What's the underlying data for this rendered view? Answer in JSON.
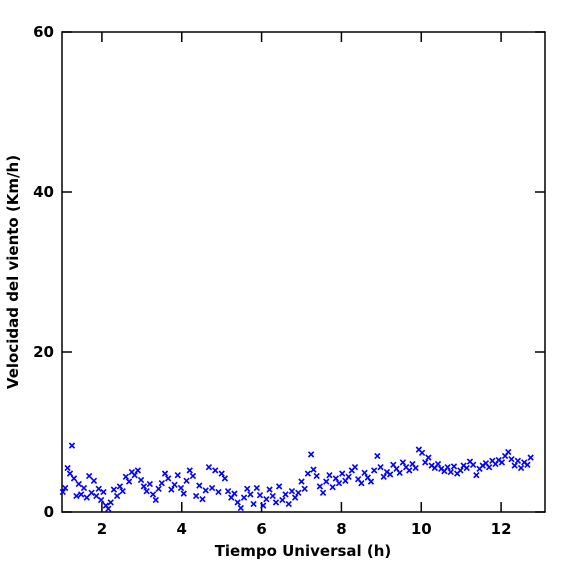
{
  "chart_data": {
    "type": "scatter",
    "color": "#0000ff",
    "x_label": "Tiempo Universal (h)",
    "y_label": "Velocidad del viento (Km/h)",
    "xlim": [
      1,
      13.1
    ],
    "ylim": [
      0,
      60
    ],
    "xticks": [
      2,
      4,
      6,
      8,
      10,
      12
    ],
    "yticks": [
      0,
      20,
      40,
      60
    ],
    "x": [
      1.02,
      1.08,
      1.14,
      1.2,
      1.25,
      1.3,
      1.36,
      1.42,
      1.48,
      1.55,
      1.62,
      1.68,
      1.74,
      1.8,
      1.86,
      1.92,
      1.98,
      2.04,
      2.1,
      2.16,
      2.22,
      2.3,
      2.38,
      2.45,
      2.52,
      2.6,
      2.68,
      2.75,
      2.82,
      2.9,
      2.98,
      3.05,
      3.12,
      3.2,
      3.28,
      3.35,
      3.42,
      3.5,
      3.58,
      3.66,
      3.74,
      3.82,
      3.9,
      3.98,
      4.05,
      4.12,
      4.2,
      4.28,
      4.36,
      4.44,
      4.52,
      4.6,
      4.68,
      4.76,
      4.84,
      4.92,
      5.0,
      5.08,
      5.16,
      5.24,
      5.32,
      5.4,
      5.48,
      5.56,
      5.64,
      5.72,
      5.8,
      5.88,
      5.96,
      6.04,
      6.12,
      6.2,
      6.28,
      6.36,
      6.44,
      6.52,
      6.6,
      6.68,
      6.76,
      6.84,
      6.92,
      7.0,
      7.08,
      7.16,
      7.24,
      7.3,
      7.38,
      7.46,
      7.54,
      7.62,
      7.7,
      7.78,
      7.86,
      7.94,
      8.02,
      8.1,
      8.18,
      8.26,
      8.34,
      8.42,
      8.5,
      8.58,
      8.66,
      8.74,
      8.82,
      8.9,
      8.98,
      9.06,
      9.14,
      9.22,
      9.3,
      9.38,
      9.46,
      9.54,
      9.62,
      9.7,
      9.78,
      9.86,
      9.94,
      10.02,
      10.1,
      10.18,
      10.26,
      10.34,
      10.42,
      10.5,
      10.58,
      10.66,
      10.74,
      10.82,
      10.9,
      10.98,
      11.06,
      11.14,
      11.22,
      11.3,
      11.38,
      11.46,
      11.54,
      11.62,
      11.7,
      11.78,
      11.86,
      11.94,
      12.02,
      12.1,
      12.18,
      12.26,
      12.34,
      12.42,
      12.5,
      12.58,
      12.66,
      12.74
    ],
    "values": [
      2.5,
      3.0,
      5.5,
      4.8,
      8.3,
      4.2,
      2.0,
      3.5,
      2.2,
      3.0,
      1.8,
      4.5,
      2.4,
      3.9,
      2.0,
      2.9,
      1.5,
      2.5,
      0.8,
      0.4,
      1.2,
      2.8,
      2.0,
      3.2,
      2.6,
      4.4,
      3.8,
      5.0,
      4.6,
      5.2,
      4.0,
      3.2,
      2.6,
      3.5,
      2.2,
      1.5,
      2.9,
      3.6,
      4.8,
      4.2,
      2.8,
      3.4,
      4.6,
      3.0,
      2.3,
      3.9,
      5.2,
      4.5,
      2.0,
      3.3,
      1.6,
      2.7,
      5.6,
      3.0,
      5.2,
      2.5,
      4.8,
      4.2,
      2.6,
      1.8,
      2.3,
      1.2,
      0.5,
      1.8,
      2.9,
      2.2,
      1.0,
      3.0,
      2.1,
      0.8,
      1.6,
      2.8,
      2.0,
      1.2,
      3.2,
      1.5,
      2.2,
      1.0,
      2.6,
      1.8,
      2.4,
      3.8,
      2.9,
      4.8,
      7.2,
      5.3,
      4.5,
      3.2,
      2.4,
      3.8,
      4.6,
      3.1,
      4.2,
      3.6,
      4.8,
      3.9,
      4.4,
      5.2,
      5.6,
      4.1,
      3.6,
      4.9,
      4.3,
      3.8,
      5.2,
      7.0,
      5.6,
      4.4,
      5.0,
      4.7,
      5.9,
      5.4,
      4.9,
      6.2,
      5.6,
      5.2,
      6.0,
      5.5,
      7.8,
      7.4,
      6.2,
      6.8,
      5.8,
      5.5,
      6.0,
      5.4,
      5.1,
      5.6,
      5.0,
      5.7,
      4.8,
      5.2,
      5.8,
      5.5,
      6.3,
      5.9,
      4.6,
      5.4,
      5.8,
      6.1,
      5.6,
      6.4,
      6.0,
      6.5,
      6.2,
      7.0,
      7.5,
      6.6,
      5.8,
      6.4,
      5.5,
      6.2,
      5.9,
      6.8
    ]
  }
}
